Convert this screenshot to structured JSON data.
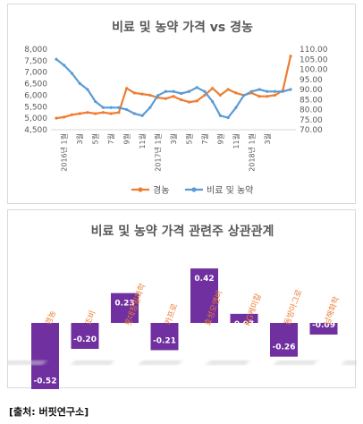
{
  "source_label": "[출처: 버핏연구소]",
  "chart_data": [
    {
      "type": "line",
      "title": "비료 및 농약 가격 vs 경농",
      "x_ticks": [
        "2016년 1월",
        "3월",
        "5월",
        "7월",
        "9월",
        "11월",
        "2017년 1월",
        "3월",
        "5월",
        "7월",
        "9월",
        "11월",
        "2018년 1월",
        "3월"
      ],
      "y_left": {
        "min": 4500,
        "max": 8000,
        "ticks": [
          "4,500",
          "5,000",
          "5,500",
          "6,000",
          "6,500",
          "7,000",
          "7,500",
          "8,000"
        ]
      },
      "y_right": {
        "min": 70,
        "max": 110,
        "ticks": [
          "70.00",
          "75.00",
          "80.00",
          "85.00",
          "90.00",
          "95.00",
          "100.00",
          "105.00",
          "110.00"
        ]
      },
      "series": [
        {
          "name": "경농",
          "axis": "left",
          "color": "#ed7d31",
          "values": [
            5000,
            5050,
            5150,
            5200,
            5250,
            5200,
            5250,
            5200,
            5250,
            6300,
            6100,
            6050,
            6000,
            5900,
            5850,
            5950,
            5800,
            5700,
            5750,
            6000,
            6300,
            6000,
            6250,
            6100,
            6000,
            6100,
            5950,
            5950,
            6000,
            6200,
            7700
          ]
        },
        {
          "name": "비료 및 농약",
          "axis": "right",
          "color": "#5b9bd5",
          "values": [
            105,
            102,
            98,
            93,
            90,
            84,
            81,
            81,
            81,
            80,
            78,
            77,
            81,
            87,
            89,
            89,
            88,
            89,
            91,
            89,
            84,
            77,
            76,
            81,
            87,
            89,
            90,
            89,
            89,
            89,
            90
          ]
        }
      ]
    },
    {
      "type": "bar",
      "title": "비료 및 농약 가격 관련주 상관관계",
      "categories": [
        "경농",
        "조비",
        "롯데정밀화학",
        "카프로",
        "효성오앤비",
        "KG케미칼",
        "동방아그로",
        "남해화학"
      ],
      "values": [
        -0.52,
        -0.2,
        0.23,
        -0.21,
        0.42,
        0.07,
        -0.26,
        -0.09
      ],
      "value_labels": [
        "-0.52",
        "-0.20",
        "0.23",
        "-0.21",
        "0.42",
        "0.07",
        "-0.26",
        "-0.09"
      ],
      "bar_color": "#7030a0",
      "label_color": "#ed7d31"
    }
  ]
}
